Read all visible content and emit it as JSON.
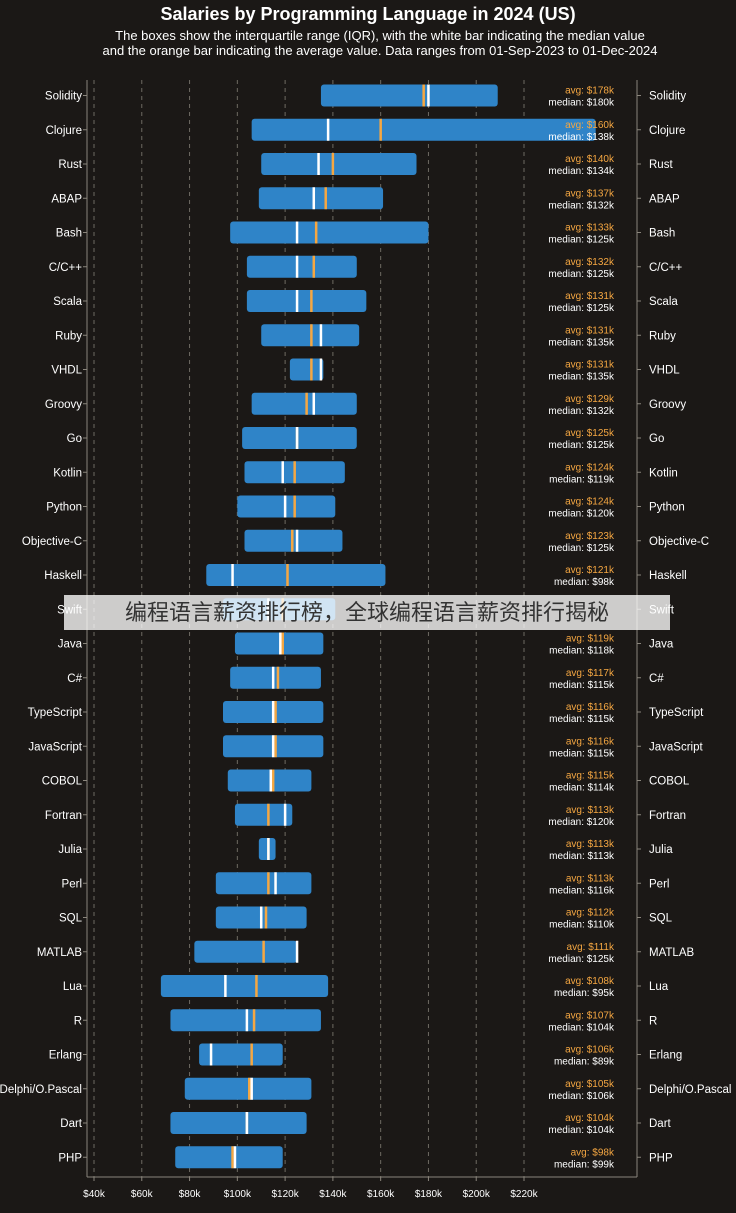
{
  "title": "Salaries by Programming Language in 2024 (US)",
  "subtitle_line1": "The boxes show the interquartile range (IQR), with the white bar indicating the median value",
  "subtitle_line2": "and the orange bar indicating the average value. Data ranges from 01-Sep-2023 to 01-Dec-2024",
  "overlay_text": "编程语言薪资排行榜，全球编程语言薪资排行揭秘",
  "colors": {
    "box": "#2f84c8",
    "median": "#ffffff",
    "average": "#f5a742",
    "avg_text": "#f5a742",
    "grid": "#6e6a62",
    "background": "#1b1816"
  },
  "chart_data": {
    "type": "box",
    "xlim": [
      40,
      220
    ],
    "xticks": [
      40,
      60,
      80,
      100,
      120,
      140,
      160,
      180,
      200,
      220
    ],
    "xtick_labels": [
      "$40k",
      "$60k",
      "$80k",
      "$100k",
      "$120k",
      "$140k",
      "$160k",
      "$180k",
      "$200k",
      "$220k"
    ],
    "units": "$k",
    "grid": true,
    "languages": [
      {
        "name": "Solidity",
        "q1": 135,
        "q3": 209,
        "median": 180,
        "avg": 178,
        "avg_label": "avg: $178k",
        "median_label": "median: $180k"
      },
      {
        "name": "Clojure",
        "q1": 106,
        "q3": 250,
        "median": 138,
        "avg": 160,
        "avg_label": "avg: $160k",
        "median_label": "median: $138k"
      },
      {
        "name": "Rust",
        "q1": 110,
        "q3": 175,
        "median": 134,
        "avg": 140,
        "avg_label": "avg: $140k",
        "median_label": "median: $134k"
      },
      {
        "name": "ABAP",
        "q1": 109,
        "q3": 161,
        "median": 132,
        "avg": 137,
        "avg_label": "avg: $137k",
        "median_label": "median: $132k"
      },
      {
        "name": "Bash",
        "q1": 97,
        "q3": 180,
        "median": 125,
        "avg": 133,
        "avg_label": "avg: $133k",
        "median_label": "median: $125k"
      },
      {
        "name": "C/C++",
        "q1": 104,
        "q3": 150,
        "median": 125,
        "avg": 132,
        "avg_label": "avg: $132k",
        "median_label": "median: $125k"
      },
      {
        "name": "Scala",
        "q1": 104,
        "q3": 154,
        "median": 125,
        "avg": 131,
        "avg_label": "avg: $131k",
        "median_label": "median: $125k"
      },
      {
        "name": "Ruby",
        "q1": 110,
        "q3": 151,
        "median": 135,
        "avg": 131,
        "avg_label": "avg: $131k",
        "median_label": "median: $135k"
      },
      {
        "name": "VHDL",
        "q1": 122,
        "q3": 136,
        "median": 135,
        "avg": 131,
        "avg_label": "avg: $131k",
        "median_label": "median: $135k"
      },
      {
        "name": "Groovy",
        "q1": 106,
        "q3": 150,
        "median": 132,
        "avg": 129,
        "avg_label": "avg: $129k",
        "median_label": "median: $132k"
      },
      {
        "name": "Go",
        "q1": 102,
        "q3": 150,
        "median": 125,
        "avg": 125,
        "avg_label": "avg: $125k",
        "median_label": "median: $125k"
      },
      {
        "name": "Kotlin",
        "q1": 103,
        "q3": 145,
        "median": 119,
        "avg": 124,
        "avg_label": "avg: $124k",
        "median_label": "median: $119k"
      },
      {
        "name": "Python",
        "q1": 100,
        "q3": 141,
        "median": 120,
        "avg": 124,
        "avg_label": "avg: $124k",
        "median_label": "median: $120k"
      },
      {
        "name": "Objective-C",
        "q1": 103,
        "q3": 144,
        "median": 125,
        "avg": 123,
        "avg_label": "avg: $123k",
        "median_label": "median: $125k"
      },
      {
        "name": "Haskell",
        "q1": 87,
        "q3": 162,
        "median": 98,
        "avg": 121,
        "avg_label": "avg: $121k",
        "median_label": "median: $98k"
      },
      {
        "name": "Swift",
        "q1": 94,
        "q3": 141,
        "median": 113,
        "avg": 119,
        "avg_label": "",
        "median_label": ""
      },
      {
        "name": "Java",
        "q1": 99,
        "q3": 136,
        "median": 118,
        "avg": 119,
        "avg_label": "avg: $119k",
        "median_label": "median: $118k"
      },
      {
        "name": "C#",
        "q1": 97,
        "q3": 135,
        "median": 115,
        "avg": 117,
        "avg_label": "avg: $117k",
        "median_label": "median: $115k"
      },
      {
        "name": "TypeScript",
        "q1": 94,
        "q3": 136,
        "median": 115,
        "avg": 116,
        "avg_label": "avg: $116k",
        "median_label": "median: $115k"
      },
      {
        "name": "JavaScript",
        "q1": 94,
        "q3": 136,
        "median": 115,
        "avg": 116,
        "avg_label": "avg: $116k",
        "median_label": "median: $115k"
      },
      {
        "name": "COBOL",
        "q1": 96,
        "q3": 131,
        "median": 114,
        "avg": 115,
        "avg_label": "avg: $115k",
        "median_label": "median: $114k"
      },
      {
        "name": "Fortran",
        "q1": 99,
        "q3": 123,
        "median": 120,
        "avg": 113,
        "avg_label": "avg: $113k",
        "median_label": "median: $120k"
      },
      {
        "name": "Julia",
        "q1": 109,
        "q3": 116,
        "median": 113,
        "avg": 113,
        "avg_label": "avg: $113k",
        "median_label": "median: $113k"
      },
      {
        "name": "Perl",
        "q1": 91,
        "q3": 131,
        "median": 116,
        "avg": 113,
        "avg_label": "avg: $113k",
        "median_label": "median: $116k"
      },
      {
        "name": "SQL",
        "q1": 91,
        "q3": 129,
        "median": 110,
        "avg": 112,
        "avg_label": "avg: $112k",
        "median_label": "median: $110k"
      },
      {
        "name": "MATLAB",
        "q1": 82,
        "q3": 125,
        "median": 125,
        "avg": 111,
        "avg_label": "avg: $111k",
        "median_label": "median: $125k"
      },
      {
        "name": "Lua",
        "q1": 68,
        "q3": 138,
        "median": 95,
        "avg": 108,
        "avg_label": "avg: $108k",
        "median_label": "median: $95k"
      },
      {
        "name": "R",
        "q1": 72,
        "q3": 135,
        "median": 104,
        "avg": 107,
        "avg_label": "avg: $107k",
        "median_label": "median: $104k"
      },
      {
        "name": "Erlang",
        "q1": 84,
        "q3": 119,
        "median": 89,
        "avg": 106,
        "avg_label": "avg: $106k",
        "median_label": "median: $89k"
      },
      {
        "name": "Delphi/O.Pascal",
        "q1": 78,
        "q3": 131,
        "median": 106,
        "avg": 105,
        "avg_label": "avg: $105k",
        "median_label": "median: $106k"
      },
      {
        "name": "Dart",
        "q1": 72,
        "q3": 129,
        "median": 104,
        "avg": 104,
        "avg_label": "avg: $104k",
        "median_label": "median: $104k"
      },
      {
        "name": "PHP",
        "q1": 74,
        "q3": 119,
        "median": 99,
        "avg": 98,
        "avg_label": "avg: $98k",
        "median_label": "median: $99k"
      }
    ]
  }
}
